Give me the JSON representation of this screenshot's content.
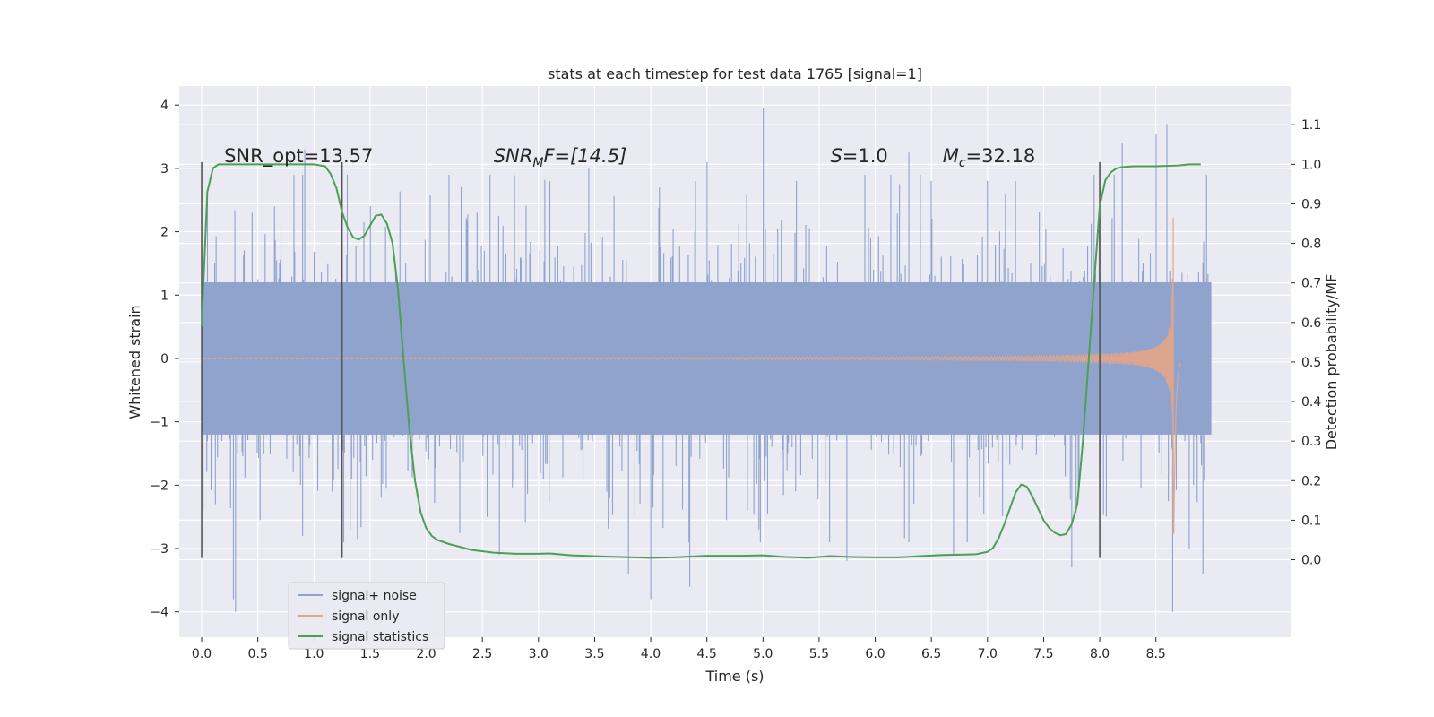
{
  "chart_data": {
    "type": "line",
    "title": "stats at each timestep for test data 1765 [signal=1]",
    "xlabel": "Time (s)",
    "ylabel": "Whitened strain",
    "y2label": "Detection probability/MF",
    "xlim": [
      -0.2,
      9.7
    ],
    "ylim": [
      -4.4,
      4.3
    ],
    "y2lim": [
      -0.196,
      1.198
    ],
    "xticks": [
      0.0,
      0.5,
      1.0,
      1.5,
      2.0,
      2.5,
      3.0,
      3.5,
      4.0,
      4.5,
      5.0,
      5.5,
      6.0,
      6.5,
      7.0,
      7.5,
      8.0,
      8.5
    ],
    "xtick_labels": [
      "0.0",
      "0.5",
      "1.0",
      "1.5",
      "2.0",
      "2.5",
      "3.0",
      "3.5",
      "4.0",
      "4.5",
      "5.0",
      "5.5",
      "6.0",
      "6.5",
      "7.0",
      "7.5",
      "8.0",
      "8.5"
    ],
    "yticks": [
      -4,
      -3,
      -2,
      -1,
      0,
      1,
      2,
      3,
      4
    ],
    "ytick_labels": [
      "−4",
      "−3",
      "−2",
      "−1",
      "0",
      "1",
      "2",
      "3",
      "4"
    ],
    "y2ticks": [
      0.0,
      0.1,
      0.2,
      0.3,
      0.4,
      0.5,
      0.6,
      0.7,
      0.8,
      0.9,
      1.0,
      1.1
    ],
    "y2tick_labels": [
      "0.0",
      "0.1",
      "0.2",
      "0.3",
      "0.4",
      "0.5",
      "0.6",
      "0.7",
      "0.8",
      "0.9",
      "1.0",
      "1.1"
    ],
    "grid": true,
    "legend_position": "lower-left",
    "annotations": [
      {
        "name": "annotation-snr-opt",
        "text": "SNR_opt=13.57",
        "x": 0.2,
        "y": 3.1
      },
      {
        "name": "annotation-snr-mf",
        "text_base": "SNR",
        "text_sub": "M",
        "text_rest": "F=[14.5]",
        "x": 2.6,
        "y": 3.1
      },
      {
        "name": "annotation-s",
        "text_base": "S",
        "text_rest": "=1.0",
        "x": 5.6,
        "y": 3.1
      },
      {
        "name": "annotation-mc",
        "text_base": "M",
        "text_sub": "c",
        "text_rest": "=32.18",
        "x": 6.6,
        "y": 3.1
      }
    ],
    "vlines": [
      {
        "x": 0.0,
        "ymin": -3.15,
        "ymax": 3.1
      },
      {
        "x": 1.25,
        "ymin": -3.15,
        "ymax": 3.1
      },
      {
        "x": 8.0,
        "ymin": -3.15,
        "ymax": 3.1
      }
    ],
    "series": [
      {
        "name": "signal+ noise",
        "axis": "left",
        "color": "#8fa3cd",
        "description": "whitened noisy strain, sample range 0-9 s",
        "x_range": [
          0.0,
          8.99
        ],
        "envelope_p": 1.2,
        "peaks": [
          [
            0.05,
            2.6
          ],
          [
            0.12,
            -2.3
          ],
          [
            0.3,
            -4.0
          ],
          [
            0.28,
            -3.8
          ],
          [
            0.45,
            2.3
          ],
          [
            0.65,
            2.4
          ],
          [
            0.9,
            -2.8
          ],
          [
            0.92,
            3.3
          ],
          [
            1.3,
            2.9
          ],
          [
            1.32,
            -2.7
          ],
          [
            1.6,
            -2.2
          ],
          [
            2.2,
            2.9
          ],
          [
            2.45,
            2.3
          ],
          [
            2.65,
            -3.1
          ],
          [
            3.1,
            2.8
          ],
          [
            3.45,
            3.0
          ],
          [
            3.8,
            -3.4
          ],
          [
            4.0,
            -3.8
          ],
          [
            4.08,
            2.7
          ],
          [
            4.4,
            2.8
          ],
          [
            4.35,
            -3.6
          ],
          [
            4.5,
            3.1
          ],
          [
            5.0,
            3.95
          ],
          [
            5.3,
            2.8
          ],
          [
            5.75,
            -3.2
          ],
          [
            6.3,
            3.25
          ],
          [
            6.5,
            2.8
          ],
          [
            6.7,
            -3.1
          ],
          [
            7.0,
            2.8
          ],
          [
            7.25,
            2.8
          ],
          [
            7.75,
            -3.3
          ],
          [
            7.95,
            2.9
          ],
          [
            8.2,
            3.4
          ],
          [
            8.5,
            3.55
          ],
          [
            8.6,
            3.7
          ],
          [
            8.65,
            -4.0
          ],
          [
            8.8,
            -3.0
          ],
          [
            8.95,
            2.9
          ],
          [
            8.92,
            -3.4
          ]
        ]
      },
      {
        "name": "signal only",
        "axis": "left",
        "color": "#e1a58a",
        "description": "chirp waveform, amplitude growing to merger near 8.65 s",
        "x_range": [
          0.0,
          8.72
        ],
        "merger_time": 8.66,
        "peak_amplitude": 3.0
      },
      {
        "name": "signal statistics",
        "axis": "right",
        "color": "#4c9f55",
        "x": [
          0.0,
          0.05,
          0.1,
          0.15,
          0.2,
          0.3,
          0.5,
          0.7,
          0.9,
          1.0,
          1.1,
          1.15,
          1.2,
          1.25,
          1.3,
          1.35,
          1.4,
          1.45,
          1.5,
          1.55,
          1.6,
          1.65,
          1.7,
          1.75,
          1.8,
          1.85,
          1.9,
          1.95,
          2.0,
          2.05,
          2.1,
          2.2,
          2.4,
          2.6,
          2.8,
          3.0,
          3.1,
          3.3,
          3.6,
          4.0,
          4.2,
          4.5,
          4.8,
          5.0,
          5.2,
          5.4,
          5.6,
          5.8,
          6.0,
          6.2,
          6.4,
          6.6,
          6.8,
          6.9,
          7.0,
          7.05,
          7.1,
          7.15,
          7.2,
          7.25,
          7.3,
          7.35,
          7.4,
          7.45,
          7.5,
          7.55,
          7.6,
          7.65,
          7.7,
          7.75,
          7.8,
          7.85,
          7.9,
          7.95,
          8.0,
          8.05,
          8.1,
          8.15,
          8.2,
          8.3,
          8.5,
          8.7,
          8.8,
          8.9
        ],
        "values": [
          0.59,
          0.93,
          0.99,
          1.0,
          1.0,
          1.0,
          1.0,
          1.0,
          1.0,
          1.0,
          0.995,
          0.975,
          0.94,
          0.88,
          0.84,
          0.815,
          0.81,
          0.82,
          0.845,
          0.87,
          0.873,
          0.85,
          0.8,
          0.68,
          0.5,
          0.33,
          0.2,
          0.12,
          0.08,
          0.06,
          0.05,
          0.04,
          0.025,
          0.018,
          0.015,
          0.015,
          0.016,
          0.011,
          0.008,
          0.005,
          0.006,
          0.01,
          0.01,
          0.011,
          0.007,
          0.005,
          0.009,
          0.007,
          0.006,
          0.006,
          0.009,
          0.012,
          0.013,
          0.014,
          0.02,
          0.03,
          0.055,
          0.09,
          0.13,
          0.17,
          0.19,
          0.185,
          0.16,
          0.13,
          0.1,
          0.08,
          0.068,
          0.062,
          0.065,
          0.09,
          0.14,
          0.3,
          0.5,
          0.7,
          0.895,
          0.96,
          0.98,
          0.99,
          0.993,
          0.995,
          0.995,
          0.997,
          1.0,
          1.0
        ]
      }
    ]
  }
}
